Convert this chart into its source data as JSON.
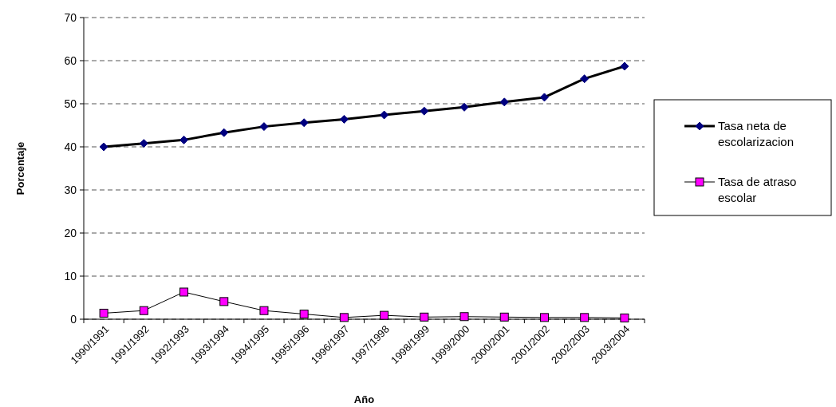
{
  "chart_data": {
    "type": "line",
    "xlabel": "Año",
    "ylabel": "Porcentaje",
    "categories": [
      "1990/1991",
      "1991/1992",
      "1992/1993",
      "1993/1994",
      "1994/1995",
      "1995/1996",
      "1996/1997",
      "1997/1998",
      "1998/1999",
      "1999/2000",
      "2000/2001",
      "2001/2002",
      "2002/2003",
      "2003/2004"
    ],
    "series": [
      {
        "name": "Tasa neta de escolarizacion",
        "color": "#000080",
        "marker": "diamond",
        "values": [
          40.0,
          40.8,
          41.6,
          43.3,
          44.7,
          45.6,
          46.4,
          47.4,
          48.3,
          49.2,
          50.4,
          51.5,
          55.8,
          58.7
        ]
      },
      {
        "name": "Tasa de atraso escolar",
        "color": "#ff00ff",
        "marker": "square",
        "values": [
          1.4,
          2.0,
          6.3,
          4.1,
          2.0,
          1.2,
          0.4,
          0.9,
          0.5,
          0.6,
          0.5,
          0.4,
          0.4,
          0.3
        ]
      }
    ],
    "ylim": [
      0,
      70
    ],
    "yticks": [
      0,
      10,
      20,
      30,
      40,
      50,
      60,
      70
    ],
    "grid": "y",
    "legend": "right"
  }
}
